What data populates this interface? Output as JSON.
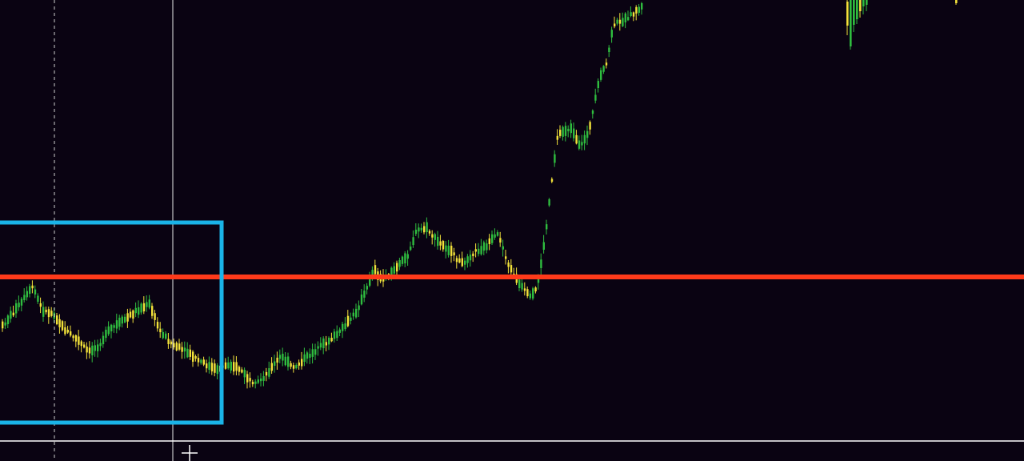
{
  "colors": {
    "background": "#0a0312",
    "bull": "#2fbd3f",
    "bear": "#f2e23a",
    "level_line": "#ff3a1a",
    "box": "#1ab4e8",
    "crosshair": "#e8e8e8",
    "time_line": "#ffffff"
  },
  "chart_data": {
    "type": "candlestick",
    "title": "",
    "xlabel": "",
    "ylabel": "",
    "grid": false,
    "legend": "none",
    "ylim": [
      0,
      576
    ],
    "candle_count": 240,
    "price_path": [
      [
        0,
        410
      ],
      [
        12,
        395
      ],
      [
        26,
        378
      ],
      [
        40,
        358
      ],
      [
        52,
        388
      ],
      [
        66,
        392
      ],
      [
        78,
        410
      ],
      [
        96,
        425
      ],
      [
        110,
        440
      ],
      [
        122,
        432
      ],
      [
        136,
        412
      ],
      [
        154,
        400
      ],
      [
        170,
        388
      ],
      [
        186,
        380
      ],
      [
        198,
        412
      ],
      [
        214,
        430
      ],
      [
        232,
        440
      ],
      [
        250,
        452
      ],
      [
        268,
        462
      ],
      [
        286,
        455
      ],
      [
        300,
        462
      ],
      [
        316,
        482
      ],
      [
        330,
        470
      ],
      [
        350,
        445
      ],
      [
        366,
        460
      ],
      [
        384,
        445
      ],
      [
        404,
        430
      ],
      [
        424,
        415
      ],
      [
        444,
        390
      ],
      [
        458,
        360
      ],
      [
        466,
        335
      ],
      [
        476,
        350
      ],
      [
        494,
        335
      ],
      [
        508,
        320
      ],
      [
        520,
        288
      ],
      [
        532,
        285
      ],
      [
        546,
        302
      ],
      [
        560,
        312
      ],
      [
        576,
        330
      ],
      [
        592,
        315
      ],
      [
        606,
        308
      ],
      [
        622,
        292
      ],
      [
        634,
        330
      ],
      [
        648,
        355
      ],
      [
        662,
        372
      ],
      [
        670,
        360
      ],
      [
        680,
        300
      ],
      [
        688,
        230
      ],
      [
        696,
        168
      ],
      [
        712,
        160
      ],
      [
        724,
        185
      ],
      [
        736,
        160
      ],
      [
        748,
        100
      ],
      [
        758,
        75
      ],
      [
        766,
        30
      ],
      [
        774,
        28
      ],
      [
        786,
        20
      ],
      [
        802,
        8
      ]
    ],
    "annotations": {
      "horizontal_level": {
        "y": 346
      },
      "range_box": {
        "x1": 0,
        "x2": 277,
        "y1": 278,
        "y2": 528
      },
      "crosshair_vertical": {
        "x": 216
      },
      "dashed_vertical": {
        "x": 68
      },
      "time_axis_line": {
        "y": 551
      }
    }
  }
}
